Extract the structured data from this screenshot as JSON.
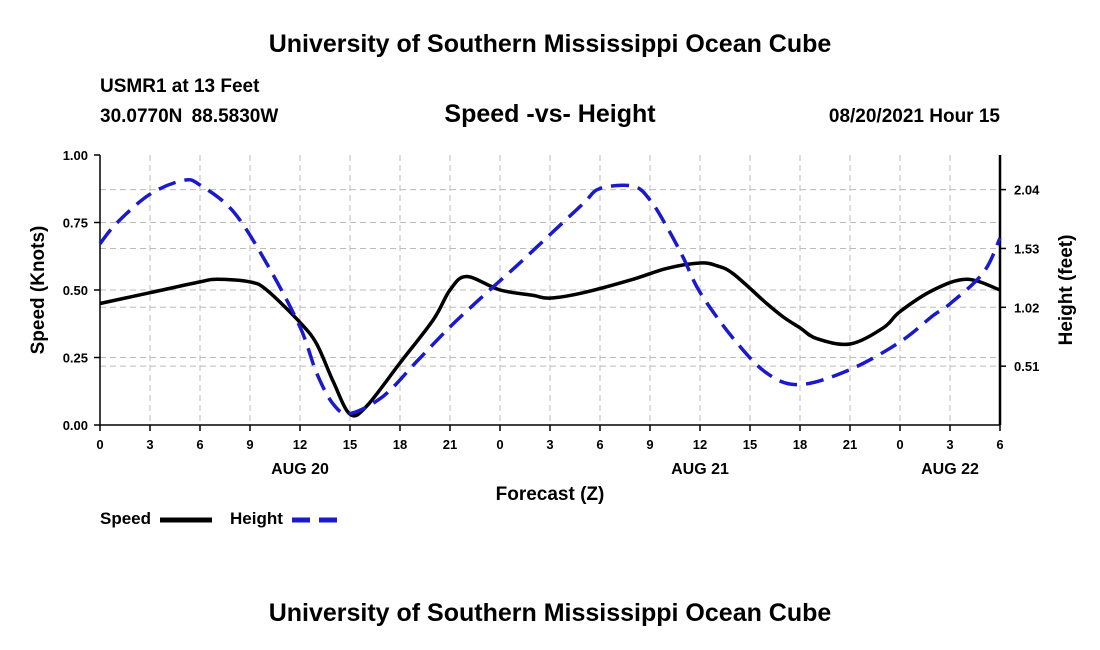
{
  "header": {
    "title": "University of Southern Mississippi Ocean Cube",
    "station": "USMR1 at 13 Feet",
    "coordinates": "30.0770N  88.5830W",
    "chart_title": "Speed -vs- Height",
    "datestamp": "08/20/2021 Hour 15"
  },
  "footer": {
    "title": "University of Southern Mississippi Ocean Cube"
  },
  "legend": {
    "speed_label": "Speed",
    "height_label": "Height"
  },
  "colors": {
    "speed": "#000000",
    "height": "#1a1acc",
    "grid": "#bbbbbb"
  },
  "chart_data": {
    "type": "line",
    "title": "Speed -vs- Height",
    "xlabel": "Forecast (Z)",
    "ylabel": "Speed (Knots)",
    "y2label": "Height (feet)",
    "xlim": [
      0,
      54
    ],
    "ylim": [
      0,
      1.0
    ],
    "y2lim": [
      0.0,
      2.34
    ],
    "x_ticks": [
      0,
      3,
      6,
      9,
      12,
      15,
      18,
      21,
      24,
      27,
      30,
      33,
      36,
      39,
      42,
      45,
      48,
      51,
      54
    ],
    "x_tick_labels": [
      "0",
      "3",
      "6",
      "9",
      "12",
      "15",
      "18",
      "21",
      "0",
      "3",
      "6",
      "9",
      "12",
      "15",
      "18",
      "21",
      "0",
      "3",
      "6"
    ],
    "date_labels": [
      {
        "x": 12,
        "label": "AUG 20"
      },
      {
        "x": 36,
        "label": "AUG 21"
      },
      {
        "x": 51,
        "label": "AUG 22"
      }
    ],
    "y_ticks": [
      0.0,
      0.25,
      0.5,
      0.75,
      1.0
    ],
    "y_tick_labels": [
      "0.00",
      "0.25",
      "0.50",
      "0.75",
      "1.00"
    ],
    "y2_ticks": [
      0.51,
      1.02,
      1.53,
      2.04
    ],
    "y2_tick_labels": [
      "0.51",
      "1.02",
      "1.53",
      "2.04"
    ],
    "grid": true,
    "series": [
      {
        "name": "Speed",
        "axis": "left",
        "style": "solid",
        "x": [
          0,
          3,
          6,
          7,
          9,
          10,
          12,
          13,
          14,
          15,
          16,
          18,
          20,
          21,
          22,
          24,
          26,
          27,
          29,
          32,
          34,
          36,
          37,
          38,
          40,
          41,
          42,
          43,
          45,
          47,
          48,
          50,
          52,
          54
        ],
        "y": [
          0.45,
          0.49,
          0.53,
          0.54,
          0.53,
          0.5,
          0.38,
          0.3,
          0.16,
          0.04,
          0.07,
          0.23,
          0.39,
          0.5,
          0.55,
          0.5,
          0.48,
          0.47,
          0.49,
          0.54,
          0.58,
          0.6,
          0.59,
          0.56,
          0.45,
          0.4,
          0.36,
          0.32,
          0.3,
          0.36,
          0.42,
          0.5,
          0.54,
          0.5
        ]
      },
      {
        "name": "Height",
        "axis": "right",
        "style": "dashed",
        "x": [
          0,
          1,
          3,
          5,
          6,
          8,
          10,
          12,
          13,
          14,
          15,
          17,
          19,
          21,
          23,
          25,
          27,
          29,
          30,
          32,
          33,
          34,
          35,
          36,
          38,
          40,
          42,
          45,
          48,
          50,
          51,
          53,
          54
        ],
        "y": [
          1.57,
          1.75,
          2.0,
          2.12,
          2.08,
          1.85,
          1.4,
          0.85,
          0.45,
          0.18,
          0.1,
          0.25,
          0.55,
          0.85,
          1.12,
          1.38,
          1.65,
          1.92,
          2.05,
          2.07,
          1.95,
          1.72,
          1.45,
          1.15,
          0.75,
          0.45,
          0.35,
          0.48,
          0.72,
          0.95,
          1.05,
          1.32,
          1.62
        ]
      }
    ]
  }
}
